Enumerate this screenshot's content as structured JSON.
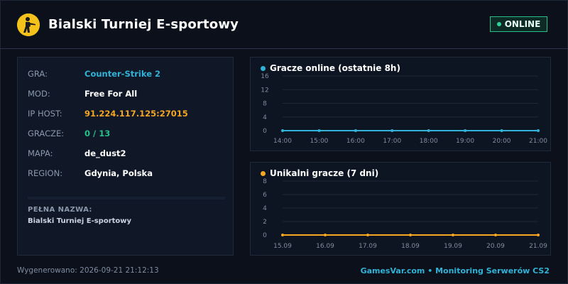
{
  "header": {
    "title": "Bialski Turniej E-sportowy",
    "status": "ONLINE",
    "status_color": "#26c08a",
    "logo_icon": "counter-strike-logo-icon"
  },
  "info": {
    "rows": [
      {
        "key": "GRA:",
        "value": "Counter-Strike 2",
        "color": "#31b3d8"
      },
      {
        "key": "MOD:",
        "value": "Free For All",
        "color": "#ffffff"
      },
      {
        "key": "IP HOST:",
        "value": "91.224.117.125:27015",
        "color": "#f5a623"
      },
      {
        "key": "GRACZE:",
        "value": "0 / 13",
        "color": "#26c08a"
      },
      {
        "key": "MAPA:",
        "value": "de_dust2",
        "color": "#ffffff"
      },
      {
        "key": "REGION:",
        "value": "Gdynia, Polska",
        "color": "#ffffff"
      }
    ],
    "full_name_label": "PEŁNA NAZWA:",
    "full_name": "Bialski Turniej E-sportowy"
  },
  "chart_data": [
    {
      "type": "line",
      "title": "Gracze online (ostatnie 8h)",
      "color": "#31b3d8",
      "x": [
        "14:00",
        "15:00",
        "16:00",
        "17:00",
        "18:00",
        "19:00",
        "20:00",
        "21:00"
      ],
      "series": [
        {
          "values": [
            0,
            0,
            0,
            0,
            0,
            0,
            0,
            0
          ]
        }
      ],
      "yticks": [
        "0",
        "4",
        "8",
        "12",
        "16"
      ],
      "ylim": [
        0,
        16
      ],
      "grid": true
    },
    {
      "type": "line",
      "title": "Unikalni gracze (7 dni)",
      "color": "#f5a623",
      "x": [
        "15.09",
        "16.09",
        "17.09",
        "18.09",
        "19.09",
        "20.09",
        "21.09"
      ],
      "series": [
        {
          "values": [
            0,
            0,
            0,
            0,
            0,
            0,
            0
          ]
        }
      ],
      "yticks": [
        "0",
        "2",
        "4",
        "6",
        "8"
      ],
      "ylim": [
        0,
        8
      ],
      "grid": true
    }
  ],
  "footer": {
    "generated": "Wygenerowano: 2026-09-21 21:12:13",
    "brand": "GamesVar.com • Monitoring Serwerów CS2"
  }
}
